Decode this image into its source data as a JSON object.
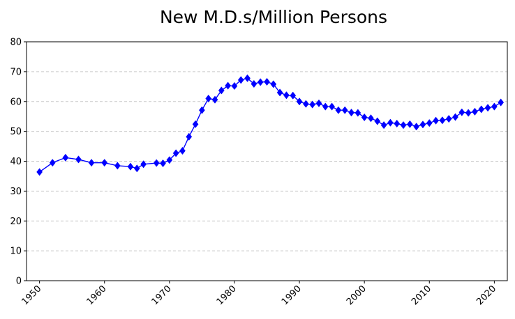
{
  "chart_data": {
    "type": "line",
    "title": "New M.D.s/Million Persons",
    "xlabel": "",
    "ylabel": "",
    "xlim": [
      1948,
      2022
    ],
    "ylim": [
      0,
      80
    ],
    "x_ticks": [
      1950,
      1960,
      1970,
      1980,
      1990,
      2000,
      2010,
      2020
    ],
    "x_tick_labels": [
      "1950",
      "1960",
      "1970",
      "1980",
      "1990",
      "2000",
      "2010",
      "2020"
    ],
    "y_ticks": [
      0,
      10,
      20,
      30,
      40,
      50,
      60,
      70,
      80
    ],
    "y_tick_labels": [
      "0",
      "10",
      "20",
      "30",
      "40",
      "50",
      "60",
      "70",
      "80"
    ],
    "grid": "horizontal dashed",
    "legend": "none",
    "marker": "diamond",
    "color": "#0000ff",
    "series": [
      {
        "x": [
          1950,
          1952,
          1954,
          1956,
          1958,
          1960,
          1962,
          1964,
          1965,
          1966,
          1968,
          1969,
          1970,
          1971,
          1972,
          1973,
          1974,
          1975,
          1976,
          1977,
          1978,
          1979,
          1980,
          1981,
          1982,
          1983,
          1984,
          1985,
          1986,
          1987,
          1988,
          1989,
          1990,
          1991,
          1992,
          1993,
          1994,
          1995,
          1996,
          1997,
          1998,
          1999,
          2000,
          2001,
          2002,
          2003,
          2004,
          2005,
          2006,
          2007,
          2008,
          2009,
          2010,
          2011,
          2012,
          2013,
          2014,
          2015,
          2016,
          2017,
          2018,
          2019,
          2020,
          2021
        ],
        "y": [
          36.4,
          39.5,
          41.2,
          40.6,
          39.5,
          39.5,
          38.5,
          38.2,
          37.6,
          39.0,
          39.4,
          39.3,
          40.4,
          42.7,
          43.5,
          48.2,
          52.4,
          57.1,
          61.0,
          60.6,
          63.7,
          65.3,
          65.2,
          67.2,
          67.8,
          65.9,
          66.5,
          66.6,
          65.8,
          63.0,
          62.1,
          62.0,
          60.0,
          59.2,
          59.0,
          59.4,
          58.3,
          58.3,
          57.1,
          57.1,
          56.3,
          56.2,
          54.7,
          54.4,
          53.4,
          52.1,
          52.9,
          52.6,
          52.1,
          52.4,
          51.6,
          52.3,
          52.8,
          53.6,
          53.7,
          54.2,
          54.8,
          56.4,
          56.2,
          56.6,
          57.4,
          57.9,
          58.3,
          59.7
        ]
      }
    ]
  }
}
